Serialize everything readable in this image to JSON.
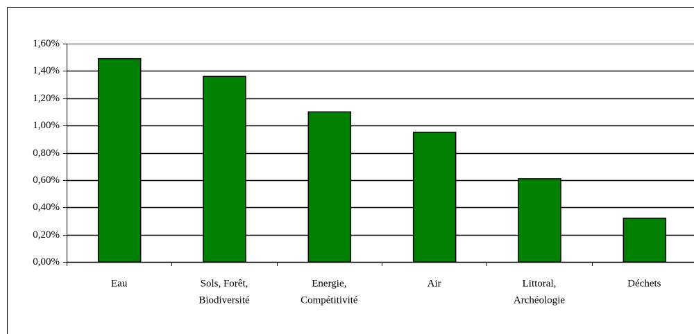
{
  "chart_data": {
    "type": "bar",
    "categories": [
      [
        "Eau"
      ],
      [
        "Sols, Forêt,",
        "Biodiversité"
      ],
      [
        "Energie,",
        "Compétitivité"
      ],
      [
        "Air"
      ],
      [
        "Littoral,",
        "Archéologie"
      ],
      [
        "Déchets"
      ]
    ],
    "values": [
      1.49,
      1.36,
      1.1,
      0.95,
      0.61,
      0.32
    ],
    "color": "#008000",
    "ylim": [
      0,
      1.6
    ],
    "yticks": [
      {
        "value": 0,
        "label": "0,00%"
      },
      {
        "value": 0.2,
        "label": "0,20%"
      },
      {
        "value": 0.4,
        "label": "0,40%"
      },
      {
        "value": 0.6,
        "label": "0,60%"
      },
      {
        "value": 0.8,
        "label": "0,80%"
      },
      {
        "value": 1.0,
        "label": "1,00%"
      },
      {
        "value": 1.2,
        "label": "1,20%"
      },
      {
        "value": 1.4,
        "label": "1,40%"
      },
      {
        "value": 1.6,
        "label": "1,60%"
      }
    ],
    "grid": true
  }
}
